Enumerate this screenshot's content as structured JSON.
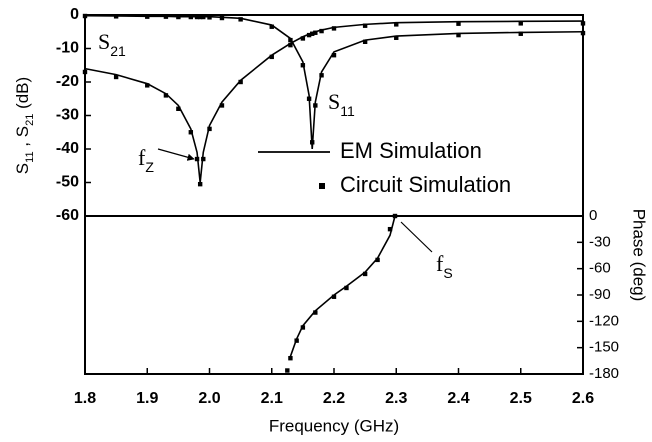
{
  "chart_data": [
    {
      "type": "line",
      "ylabel": [
        {
          "text": "S"
        },
        {
          "text": "11",
          "sub": true
        },
        {
          "text": " , S"
        },
        {
          "text": "21",
          "sub": true
        },
        {
          "text": " (dB)"
        }
      ],
      "x": [
        1.8,
        1.85,
        1.9,
        1.93,
        1.95,
        1.97,
        1.98,
        1.985,
        1.99,
        2.0,
        2.02,
        2.05,
        2.1,
        2.13,
        2.15,
        2.16,
        2.165,
        2.17,
        2.18,
        2.2,
        2.25,
        2.3,
        2.4,
        2.5,
        2.6
      ],
      "series": [
        {
          "name": "EM Simulation",
          "style": "line",
          "color": "#000000",
          "values": [
            -16,
            -17.8,
            -20.5,
            -23.5,
            -27,
            -34,
            -41,
            -50,
            -41,
            -33,
            -26,
            -19.5,
            -12,
            -8.5,
            -6.5,
            -5.7,
            -5.3,
            -5,
            -4.5,
            -3.7,
            -2.8,
            -2.3,
            -2,
            -1.9,
            -1.8
          ]
        },
        {
          "style": "line",
          "color": "#000000",
          "values": [
            -0.2,
            -0.3,
            -0.4,
            -0.4,
            -0.5,
            -0.5,
            -0.5,
            -0.5,
            -0.5,
            -0.5,
            -0.7,
            -1,
            -3,
            -7,
            -14,
            -24,
            -40,
            -26,
            -17,
            -11,
            -7.5,
            -6.3,
            -5.5,
            -5.2,
            -5
          ]
        },
        {
          "name": "Circuit Simulation",
          "style": "marker",
          "color": "#000000",
          "values": [
            -17,
            -18.5,
            -21,
            -24,
            -28,
            -35,
            -43,
            -50.5,
            -43,
            -34,
            -27,
            -20,
            -12.5,
            -9,
            -7,
            -6,
            -5.6,
            -5.3,
            -4.8,
            -4,
            -3.2,
            -2.8,
            -2.6,
            -2.5,
            -2.5
          ]
        },
        {
          "style": "marker",
          "color": "#000000",
          "values": [
            -0.3,
            -0.4,
            -0.5,
            -0.5,
            -0.6,
            -0.6,
            -0.6,
            -0.6,
            -0.6,
            -0.7,
            -0.9,
            -1.3,
            -3.5,
            -7.5,
            -15,
            -25,
            -38,
            -27,
            -18,
            -12,
            -8,
            -6.8,
            -6,
            -5.6,
            -5.4
          ]
        }
      ],
      "ylim": [
        -60,
        0
      ],
      "yticks": [
        0,
        -10,
        -20,
        -30,
        -40,
        -50,
        -60
      ],
      "annotations": [
        {
          "text": "S",
          "sub": "21"
        },
        {
          "text": "S",
          "sub": "11"
        },
        {
          "text": "f",
          "sub": "Z"
        }
      ]
    },
    {
      "type": "line",
      "xlabel": "Frequency (GHz)",
      "y2label": "Phase (deg)",
      "x": [
        2.125,
        2.13,
        2.14,
        2.15,
        2.17,
        2.2,
        2.22,
        2.25,
        2.27,
        2.29,
        2.298
      ],
      "series": [
        {
          "style": "line",
          "color": "#000000",
          "axis": "y2",
          "values": [
            null,
            -160,
            -140,
            -125,
            -108,
            -90,
            -80,
            -64,
            -48,
            -22,
            0
          ]
        },
        {
          "style": "marker",
          "color": "#000000",
          "axis": "y2",
          "values": [
            -176,
            -162,
            -142,
            -127,
            -110,
            -92,
            -82,
            -66,
            -50,
            -15,
            0
          ]
        }
      ],
      "xlim": [
        1.8,
        2.6
      ],
      "xticks": [
        1.8,
        1.9,
        {
          "value": 2,
          "label": "2.0"
        },
        2.1,
        2.2,
        2.3,
        2.4,
        2.5,
        2.6
      ],
      "y2lim": [
        -180,
        0
      ],
      "y2ticks": [
        0,
        -30,
        -60,
        -90,
        -120,
        -150,
        -180
      ],
      "annotations": [
        {
          "text": "f",
          "sub": "S"
        }
      ]
    }
  ]
}
